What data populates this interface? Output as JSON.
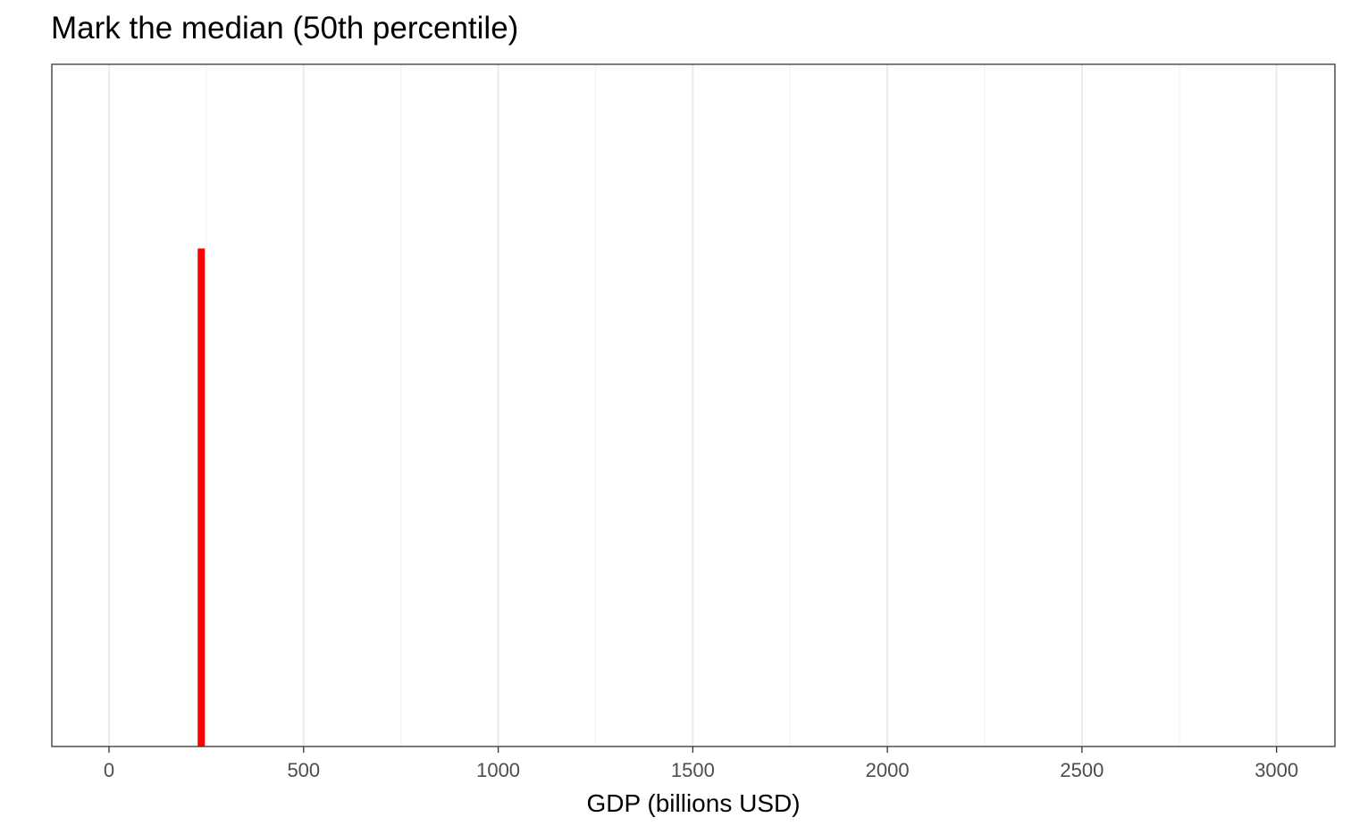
{
  "chart_data": {
    "type": "bar",
    "title": "Mark the median (50th percentile)",
    "xlabel": "GDP (billions USD)",
    "ylabel": "",
    "xlim": [
      -147,
      3150
    ],
    "xticks": [
      0,
      500,
      1000,
      1500,
      2000,
      2500,
      3000
    ],
    "xtick_labels": [
      "0",
      "500",
      "1000",
      "1500",
      "2000",
      "2500",
      "3000"
    ],
    "grid": true,
    "y_axis_shown": false,
    "marker": {
      "x": 237,
      "relative_height": 0.73,
      "color": "#ff0000"
    },
    "colors": {
      "grid_major": "#ebebeb",
      "grid_minor": "#f3f3f3",
      "panel_border": "#333333",
      "tick_label": "#4d4d4d"
    }
  }
}
